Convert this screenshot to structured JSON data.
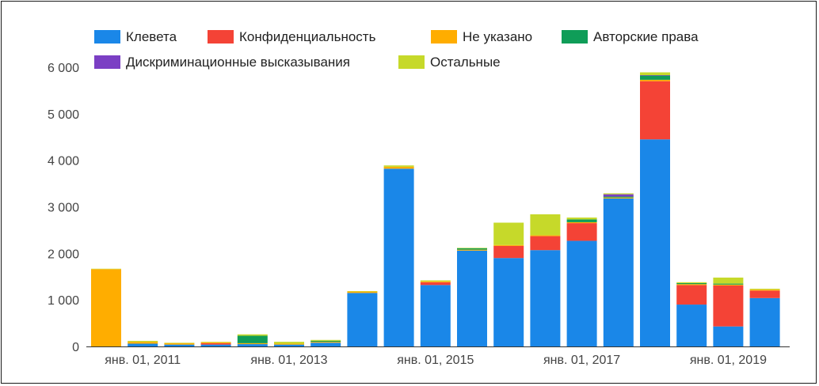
{
  "chart_data": {
    "type": "bar",
    "stacked": true,
    "legend_position": "top",
    "grid": false,
    "ylim": [
      0,
      6000
    ],
    "y_ticks": [
      "0",
      "1 000",
      "2 000",
      "3 000",
      "4 000",
      "5 000",
      "6 000"
    ],
    "y_tick_values": [
      0,
      1000,
      2000,
      3000,
      4000,
      5000,
      6000
    ],
    "x_tick_labels": [
      {
        "index": 1,
        "label": "янв. 01, 2011"
      },
      {
        "index": 5,
        "label": "янв. 01, 2013"
      },
      {
        "index": 9,
        "label": "янв. 01, 2015"
      },
      {
        "index": 13,
        "label": "янв. 01, 2017"
      },
      {
        "index": 17,
        "label": "янв. 01, 2019"
      }
    ],
    "x": [
      "2010-07",
      "2011-01",
      "2011-07",
      "2012-01",
      "2012-07",
      "2013-01",
      "2013-07",
      "2014-01",
      "2014-07",
      "2015-01",
      "2015-07",
      "2016-01",
      "2016-07",
      "2017-01",
      "2017-07",
      "2018-01",
      "2018-07",
      "2019-01",
      "2019-07"
    ],
    "series": [
      {
        "name": "Клевета",
        "color": "#1a87e8",
        "values": [
          0,
          60,
          40,
          40,
          50,
          40,
          80,
          1150,
          3820,
          1320,
          2060,
          1900,
          2070,
          2270,
          3180,
          4450,
          900,
          430,
          1040
        ]
      },
      {
        "name": "Конфиденциальность",
        "color": "#f44336",
        "values": [
          0,
          0,
          0,
          30,
          0,
          0,
          0,
          0,
          0,
          60,
          0,
          260,
          300,
          380,
          0,
          1250,
          420,
          880,
          160
        ]
      },
      {
        "name": "Не указано",
        "color": "#ffad00",
        "values": [
          1660,
          40,
          30,
          20,
          20,
          20,
          20,
          30,
          40,
          20,
          20,
          20,
          20,
          20,
          20,
          30,
          20,
          20,
          20
        ]
      },
      {
        "name": "Авторские права",
        "color": "#0f9d58",
        "values": [
          0,
          0,
          0,
          0,
          160,
          0,
          20,
          0,
          0,
          0,
          30,
          0,
          0,
          60,
          20,
          90,
          20,
          20,
          0
        ]
      },
      {
        "name": "Дискриминационные высказывания",
        "color": "#7b3fc4",
        "values": [
          0,
          0,
          0,
          0,
          0,
          0,
          0,
          0,
          0,
          0,
          0,
          0,
          0,
          0,
          50,
          10,
          0,
          0,
          0
        ]
      },
      {
        "name": "Остальные",
        "color": "#c6d92a",
        "values": [
          10,
          20,
          10,
          10,
          30,
          40,
          20,
          10,
          30,
          20,
          10,
          480,
          450,
          40,
          20,
          60,
          20,
          130,
          20
        ]
      }
    ]
  }
}
